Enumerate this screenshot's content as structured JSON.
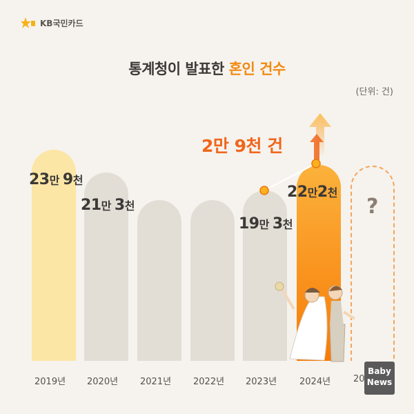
{
  "brand": {
    "name": "KB국민카드",
    "logo_text": "★b"
  },
  "title": {
    "prefix": "통계청이 발표한 ",
    "highlight": "혼인 건수"
  },
  "unit_label": "(단위: 건)",
  "increase_label": "2만 9천 건",
  "future_mark": "?",
  "watermark": {
    "line1": "Baby",
    "line2": "News"
  },
  "colors": {
    "bar_2019": "#fbe6a6",
    "bar_default": "#e2ded6",
    "bar_2024_top": "#fbb23c",
    "bar_2024_bottom": "#f77b07",
    "future_border": "#f6a45a",
    "accent": "#f0661c",
    "marker": "#fbb01f"
  },
  "chart_data": {
    "type": "bar",
    "categories": [
      "2019년",
      "2020년",
      "2021년",
      "2022년",
      "2023년",
      "2024년",
      "2025년"
    ],
    "values": [
      239000,
      213000,
      null,
      null,
      193000,
      222000,
      null
    ],
    "value_labels": [
      {
        "main": "23",
        "mid": "만 ",
        "tail": "9",
        "end": "천"
      },
      {
        "main": "21",
        "mid": "만 ",
        "tail": "3",
        "end": "천"
      },
      null,
      null,
      {
        "main": "19",
        "mid": "만 ",
        "tail": "3",
        "end": "천"
      },
      {
        "main": "22",
        "mid": "만",
        "tail": "2",
        "end": "천"
      },
      null
    ],
    "visible_x_labels": [
      "2019년",
      "2020년",
      "2021년",
      "2022년",
      "2023년",
      "2024년",
      "20"
    ],
    "annotation": "2만 9천 건",
    "ylim": [
      0,
      260000
    ],
    "grid": false
  }
}
